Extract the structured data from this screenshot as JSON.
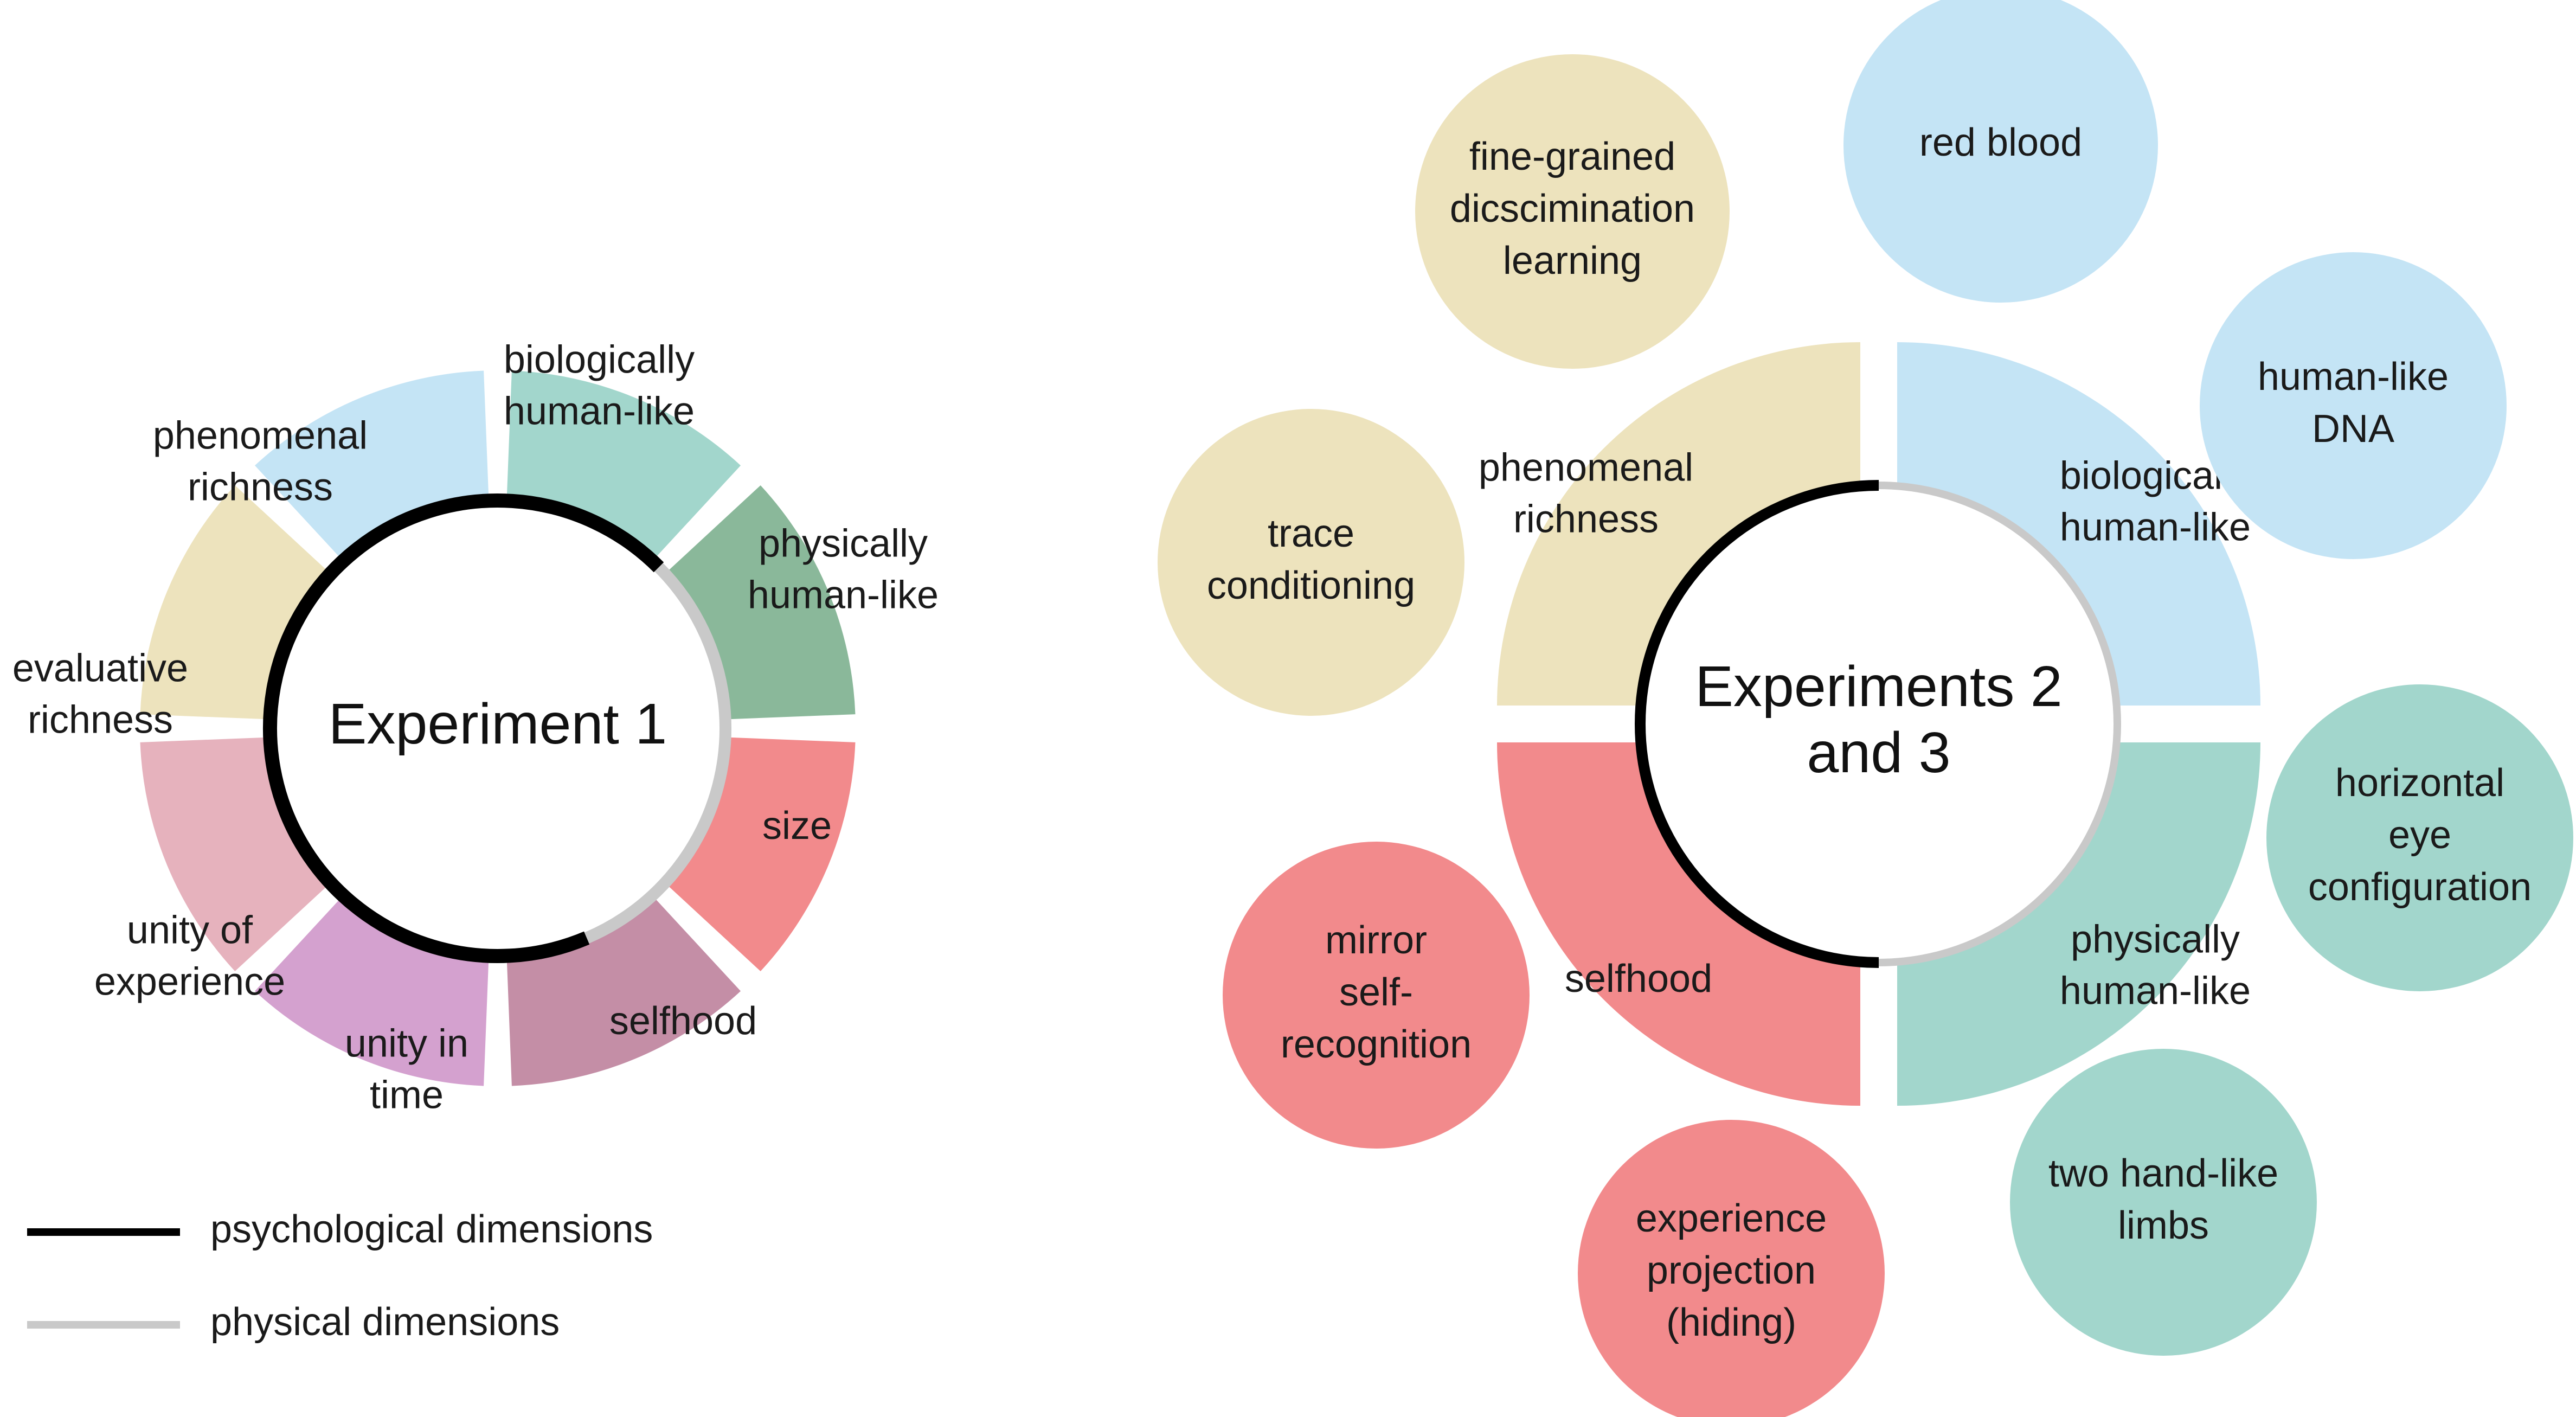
{
  "colors": {
    "phenomenal": "#ede3bd",
    "biological": "#c4e4f5",
    "physical": "#a2d6cc",
    "size": "#8ab89a",
    "selfhood": "#f28a8c",
    "unity_time": "#c48ea6",
    "unity_experience": "#d4a1cf",
    "evaluative": "#e6b2bd",
    "psychological_line": "#000000",
    "physical_line": "#c9c9c9"
  },
  "experiment1": {
    "title": "Experiment 1",
    "segments": [
      {
        "id": "phenomenal-richness",
        "lines": [
          "phenomenal",
          "richness"
        ],
        "color_key": "phenomenal"
      },
      {
        "id": "biologically-human-like",
        "lines": [
          "biologically",
          "human-like"
        ],
        "color_key": "biological"
      },
      {
        "id": "physically-human-like",
        "lines": [
          "physically",
          "human-like"
        ],
        "color_key": "physical"
      },
      {
        "id": "size",
        "lines": [
          "size"
        ],
        "color_key": "size"
      },
      {
        "id": "selfhood",
        "lines": [
          "selfhood"
        ],
        "color_key": "selfhood"
      },
      {
        "id": "unity-in-time",
        "lines": [
          "unity in",
          "time"
        ],
        "color_key": "unity_time"
      },
      {
        "id": "unity-of-experience",
        "lines": [
          "unity of",
          "experience"
        ],
        "color_key": "unity_experience"
      },
      {
        "id": "evaluative-richness",
        "lines": [
          "evaluative",
          "richness"
        ],
        "color_key": "evaluative"
      }
    ]
  },
  "experiment23": {
    "title_lines": [
      "Experiments 2",
      "and 3"
    ],
    "quadrants": [
      {
        "id": "phenomenal-richness",
        "lines": [
          "phenomenal",
          "richness"
        ],
        "color_key": "phenomenal"
      },
      {
        "id": "biologically-human-like",
        "lines": [
          "biologically",
          "human-like"
        ],
        "color_key": "biological"
      },
      {
        "id": "physically-human-like",
        "lines": [
          "physically",
          "human-like"
        ],
        "color_key": "physical"
      },
      {
        "id": "selfhood",
        "lines": [
          "selfhood"
        ],
        "color_key": "selfhood"
      }
    ],
    "bubbles": [
      {
        "id": "fine-grained-discrimination-learning",
        "lines": [
          "fine-grained",
          "dicscimination",
          "learning"
        ],
        "color_key": "phenomenal"
      },
      {
        "id": "trace-conditioning",
        "lines": [
          "trace",
          "conditioning"
        ],
        "color_key": "phenomenal"
      },
      {
        "id": "red-blood",
        "lines": [
          "red blood"
        ],
        "color_key": "biological"
      },
      {
        "id": "human-like-dna",
        "lines": [
          "human-like",
          "DNA"
        ],
        "color_key": "biological"
      },
      {
        "id": "horizontal-eye-configuration",
        "lines": [
          "horizontal",
          "eye",
          "configuration"
        ],
        "color_key": "physical"
      },
      {
        "id": "two-hand-like-limbs",
        "lines": [
          "two hand-like",
          "limbs"
        ],
        "color_key": "physical"
      },
      {
        "id": "experience-projection-hiding",
        "lines": [
          "experience",
          "projection",
          "(hiding)"
        ],
        "color_key": "selfhood"
      },
      {
        "id": "mirror-self-recognition",
        "lines": [
          "mirror",
          "self-",
          "recognition"
        ],
        "color_key": "selfhood"
      }
    ]
  },
  "legend": [
    {
      "id": "psychological",
      "label": "psychological dimensions",
      "color_key": "psychological_line"
    },
    {
      "id": "physical",
      "label": "physical dimensions",
      "color_key": "physical_line"
    }
  ]
}
